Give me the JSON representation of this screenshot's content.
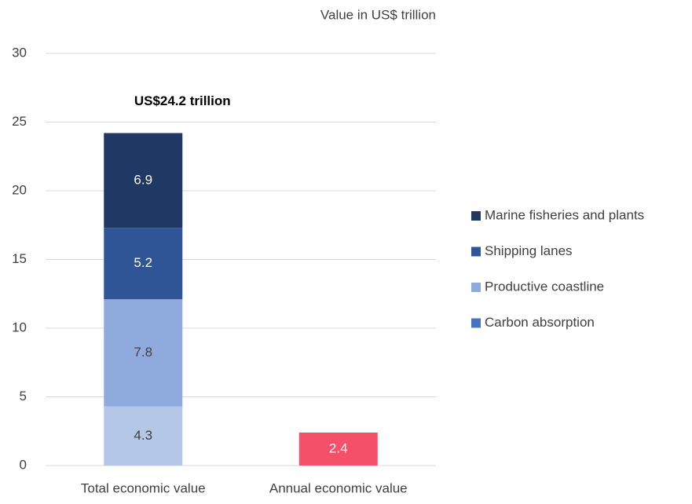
{
  "chart_data": {
    "type": "stacked_bar",
    "axis_label": "Value in US$ trillion",
    "annotation": "US$24.2 trillion",
    "categories": [
      "Total economic value",
      "Annual economic value"
    ],
    "series": [
      {
        "name": "Carbon absorption",
        "color": "#4472c4",
        "bar_color": "#b4c7e7",
        "label_color": "#404040",
        "values": [
          4.3,
          null
        ]
      },
      {
        "name": "Productive coastline",
        "color": "#8faadc",
        "bar_color": "#8faadc",
        "label_color": "#404040",
        "values": [
          7.8,
          null
        ]
      },
      {
        "name": "Shipping lanes",
        "color": "#2f5597",
        "bar_color": "#2f5597",
        "label_color": "#ffffff",
        "values": [
          5.2,
          null
        ]
      },
      {
        "name": "Marine fisheries and plants",
        "color": "#203864",
        "bar_color": "#203864",
        "label_color": "#ffffff",
        "values": [
          6.9,
          null
        ]
      },
      {
        "color": "#f4506a",
        "bar_color": "#f4506a",
        "label_color": "#ffffff",
        "values": [
          null,
          2.4
        ]
      }
    ],
    "ylim": [
      0,
      30
    ],
    "yticks": [
      0,
      5,
      10,
      15,
      20,
      25,
      30
    ],
    "grid": true,
    "legend": "right"
  }
}
